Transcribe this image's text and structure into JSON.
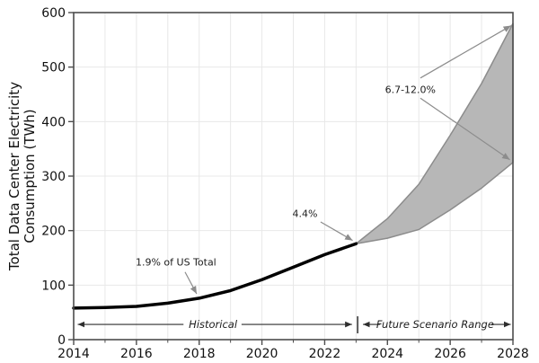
{
  "chart_data": {
    "type": "line",
    "title": "",
    "ylabel_line1": "Total Data Center Electricity",
    "ylabel_line2": "Consumption (TWh)",
    "xlabel": "",
    "xlim": [
      2014,
      2028
    ],
    "ylim": [
      0,
      600
    ],
    "x_tick_labels": [
      "2014",
      "2016",
      "2018",
      "2020",
      "2022",
      "2024",
      "2026",
      "2028"
    ],
    "x_tick_values": [
      2014,
      2016,
      2018,
      2020,
      2022,
      2024,
      2026,
      2028
    ],
    "x_minor_tick_values": [
      2015,
      2017,
      2019,
      2021,
      2023,
      2025,
      2027
    ],
    "y_tick_labels": [
      "0",
      "100",
      "200",
      "300",
      "400",
      "500",
      "600"
    ],
    "y_tick_values": [
      0,
      100,
      200,
      300,
      400,
      500,
      600
    ],
    "grid": {
      "vertical_every_year": true,
      "horizontal_every_100": true,
      "color": "#e8e8e8"
    },
    "series": [
      {
        "name": "Historical consumption",
        "x": [
          2014,
          2015,
          2016,
          2017,
          2018,
          2019,
          2020,
          2021,
          2022,
          2023
        ],
        "values": [
          58,
          59,
          61,
          67,
          76,
          90,
          110,
          133,
          156,
          176
        ],
        "color": "#000000",
        "width": 3.5
      }
    ],
    "band": {
      "name": "Future scenario range",
      "x": [
        2023,
        2024,
        2025,
        2026,
        2027,
        2028
      ],
      "low": [
        176,
        186,
        202,
        238,
        278,
        325
      ],
      "high": [
        176,
        222,
        285,
        375,
        470,
        580
      ],
      "fill": "#b7b7b7",
      "edge": "#8c8c8c"
    },
    "annotations": [
      {
        "text": "1.9% of US Total",
        "x": 2017.26,
        "y": 142,
        "arrows": [
          {
            "x1": 2017.55,
            "y1": 124,
            "x2": 2017.92,
            "y2": 84
          }
        ]
      },
      {
        "text": "4.4%",
        "x": 2021.37,
        "y": 231,
        "arrows": [
          {
            "x1": 2021.87,
            "y1": 216,
            "x2": 2022.89,
            "y2": 182
          }
        ]
      },
      {
        "text": "6.7-12.0%",
        "x": 2024.73,
        "y": 458,
        "arrows": [
          {
            "x1": 2025.05,
            "y1": 480,
            "x2": 2027.94,
            "y2": 576
          },
          {
            "x1": 2025.05,
            "y1": 443,
            "x2": 2027.9,
            "y2": 330
          }
        ]
      }
    ],
    "range_band": {
      "y": 28,
      "divider_x": 2023.05,
      "historical": {
        "label": "Historical",
        "text_x": 2018.44,
        "left_tip": 2014.13,
        "left_inner": 2017.5,
        "right_inner": 2019.35,
        "right_tip": 2022.87
      },
      "future": {
        "label": "Future Scenario Range",
        "text_x": 2025.52,
        "left_tip": 2023.22,
        "left_inner": 2023.76,
        "right_inner": 2027.31,
        "right_tip": 2027.93
      }
    },
    "colors": {
      "axis": "#4d4d4d",
      "tick_label": "#111111",
      "annotation_text": "#1c1c1c",
      "annotation_arrow": "#8c8c8c",
      "range_arrow": "#2e2e2e"
    }
  }
}
